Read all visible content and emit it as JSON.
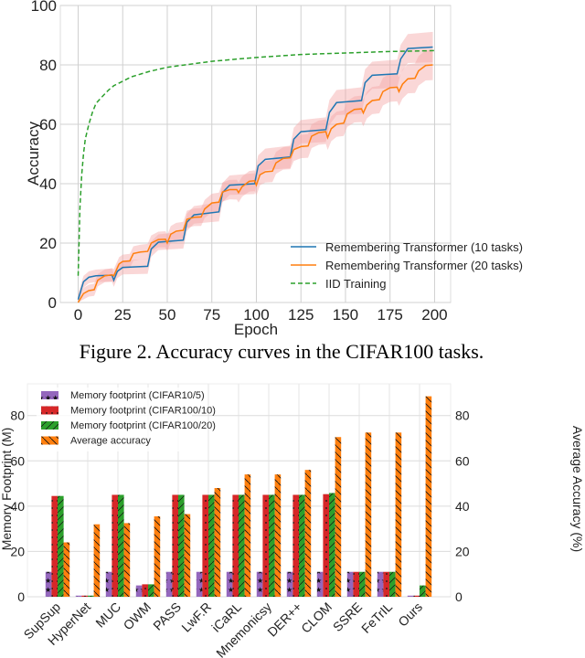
{
  "colors": {
    "blue": "#1f77b4",
    "orange": "#ff7f0e",
    "green": "#2ca02c",
    "band": "#f4a6a6",
    "purple": "#9467bd",
    "red": "#d62728"
  },
  "caption": "Figure 2. Accuracy curves in the CIFAR100 tasks.",
  "chart_data": [
    {
      "type": "line",
      "xlabel": "Epoch",
      "ylabel": "Accuracy",
      "xlim": [
        -10,
        209
      ],
      "ylim": [
        0,
        100
      ],
      "xticks": [
        0,
        25,
        50,
        75,
        100,
        125,
        150,
        175,
        200
      ],
      "yticks": [
        0,
        20,
        40,
        60,
        80,
        100
      ],
      "grid": true,
      "legend_position": "lower-right",
      "series": [
        {
          "name": "Remembering Transformer (10 tasks)",
          "color": "#1f77b4",
          "style": "solid",
          "shaded_band": true,
          "points": [
            [
              0,
              1
            ],
            [
              3,
              7
            ],
            [
              6,
              8.5
            ],
            [
              10,
              9
            ],
            [
              19,
              9.2
            ],
            [
              20,
              7.5
            ],
            [
              22,
              10.5
            ],
            [
              25,
              11.8
            ],
            [
              39,
              12.2
            ],
            [
              41,
              18
            ],
            [
              45,
              20.3
            ],
            [
              59,
              21
            ],
            [
              61,
              27
            ],
            [
              65,
              29.5
            ],
            [
              79,
              30.5
            ],
            [
              81,
              37
            ],
            [
              85,
              39.5
            ],
            [
              99,
              40
            ],
            [
              101,
              46
            ],
            [
              105,
              48.2
            ],
            [
              119,
              49
            ],
            [
              121,
              55
            ],
            [
              125,
              57.5
            ],
            [
              139,
              58.2
            ],
            [
              141,
              64
            ],
            [
              145,
              67.3
            ],
            [
              159,
              68
            ],
            [
              161,
              74
            ],
            [
              165,
              76.5
            ],
            [
              179,
              77
            ],
            [
              181,
              82
            ],
            [
              185,
              85.5
            ],
            [
              199,
              86
            ]
          ]
        },
        {
          "name": "Remembering Transformer (20 tasks)",
          "color": "#ff7f0e",
          "style": "solid",
          "shaded_band": true,
          "points": [
            [
              0,
              0
            ],
            [
              3,
              3
            ],
            [
              6,
              4
            ],
            [
              9,
              4.3
            ],
            [
              11,
              7.5
            ],
            [
              15,
              9
            ],
            [
              19,
              9.3
            ],
            [
              20,
              9
            ],
            [
              23,
              13
            ],
            [
              25,
              13.8
            ],
            [
              29,
              14
            ],
            [
              31,
              16.5
            ],
            [
              35,
              17
            ],
            [
              39,
              17.2
            ],
            [
              41,
              20
            ],
            [
              45,
              21.2
            ],
            [
              49,
              21.3
            ],
            [
              50,
              20
            ],
            [
              52,
              23
            ],
            [
              55,
              24
            ],
            [
              59,
              24.3
            ],
            [
              61,
              28
            ],
            [
              65,
              28.7
            ],
            [
              69,
              28.8
            ],
            [
              71,
              31.5
            ],
            [
              75,
              33.5
            ],
            [
              79,
              33.8
            ],
            [
              81,
              37.2
            ],
            [
              85,
              38
            ],
            [
              89,
              38
            ],
            [
              90,
              37
            ],
            [
              92,
              39
            ],
            [
              96,
              40.8
            ],
            [
              99,
              41
            ],
            [
              100,
              39.5
            ],
            [
              102,
              43
            ],
            [
              105,
              44
            ],
            [
              109,
              44.2
            ],
            [
              111,
              47
            ],
            [
              115,
              48.5
            ],
            [
              119,
              48.7
            ],
            [
              121,
              51.5
            ],
            [
              125,
              52.5
            ],
            [
              129,
              52.7
            ],
            [
              131,
              56
            ],
            [
              135,
              57.2
            ],
            [
              139,
              57.5
            ],
            [
              140,
              55.5
            ],
            [
              142,
              58.5
            ],
            [
              145,
              60
            ],
            [
              149,
              60.4
            ],
            [
              151,
              63.5
            ],
            [
              155,
              65
            ],
            [
              159,
              65.2
            ],
            [
              160,
              63.8
            ],
            [
              162,
              66.5
            ],
            [
              165,
              68
            ],
            [
              169,
              68.3
            ],
            [
              171,
              71
            ],
            [
              175,
              72.3
            ],
            [
              179,
              72.5
            ],
            [
              180,
              71
            ],
            [
              182,
              73.5
            ],
            [
              185,
              75.3
            ],
            [
              189,
              75.5
            ],
            [
              191,
              78
            ],
            [
              195,
              79.8
            ],
            [
              199,
              80
            ]
          ]
        },
        {
          "name": "IID Training",
          "color": "#2ca02c",
          "style": "dashed",
          "shaded_band": false,
          "points": [
            [
              0,
              9
            ],
            [
              0.5,
              20
            ],
            [
              1,
              32
            ],
            [
              2,
              43
            ],
            [
              3,
              50
            ],
            [
              4,
              55
            ],
            [
              6,
              60
            ],
            [
              8,
              64
            ],
            [
              10,
              67
            ],
            [
              13,
              69
            ],
            [
              17,
              71.5
            ],
            [
              20,
              73
            ],
            [
              25,
              74.5
            ],
            [
              30,
              76
            ],
            [
              40,
              77.8
            ],
            [
              50,
              79.2
            ],
            [
              60,
              80
            ],
            [
              75,
              81.2
            ],
            [
              90,
              82
            ],
            [
              100,
              82.5
            ],
            [
              125,
              83.5
            ],
            [
              150,
              84
            ],
            [
              175,
              84.5
            ],
            [
              200,
              84.8
            ]
          ]
        }
      ]
    },
    {
      "type": "bar",
      "ylabel": "Memory Footprint (M)",
      "ylabel_right": "Average Accuracy (%)",
      "ylim": [
        0,
        94
      ],
      "yticks": [
        0,
        20,
        40,
        60,
        80
      ],
      "grid": true,
      "legend_position": "top-left",
      "categories": [
        "SupSup",
        "HyperNet",
        "MUC",
        "OWM",
        "PASS",
        "LwF.R",
        "iCaRL",
        "Mnemonicsy",
        "DER++",
        "CLOM",
        "SSRE",
        "FeTrIL",
        "Ours"
      ],
      "series": [
        {
          "name": "Memory footprint (CIFAR10/5)",
          "color": "#9467bd",
          "hatch": "stars",
          "axis": "left",
          "values": [
            11,
            0.5,
            11,
            5,
            11,
            11,
            11,
            11,
            11,
            11,
            11,
            11,
            0.5
          ]
        },
        {
          "name": "Memory footprint (CIFAR100/10)",
          "color": "#d62728",
          "hatch": "dots",
          "axis": "left",
          "values": [
            44.5,
            0.5,
            45,
            5.5,
            45,
            45,
            45,
            45,
            45,
            45.3,
            11,
            11,
            0.5
          ]
        },
        {
          "name": "Memory footprint (CIFAR100/20)",
          "color": "#2ca02c",
          "hatch": "slash",
          "axis": "left",
          "values": [
            44.5,
            0.5,
            45,
            5.5,
            45,
            45,
            45,
            45,
            45,
            45.8,
            11,
            11,
            5
          ]
        },
        {
          "name": "Average accuracy",
          "color": "#ff7f0e",
          "hatch": "backslash",
          "axis": "right",
          "values": [
            24,
            32,
            32.5,
            35.5,
            36.5,
            48,
            54,
            54,
            56,
            70.5,
            72.5,
            72.5,
            88.5
          ]
        }
      ]
    }
  ]
}
